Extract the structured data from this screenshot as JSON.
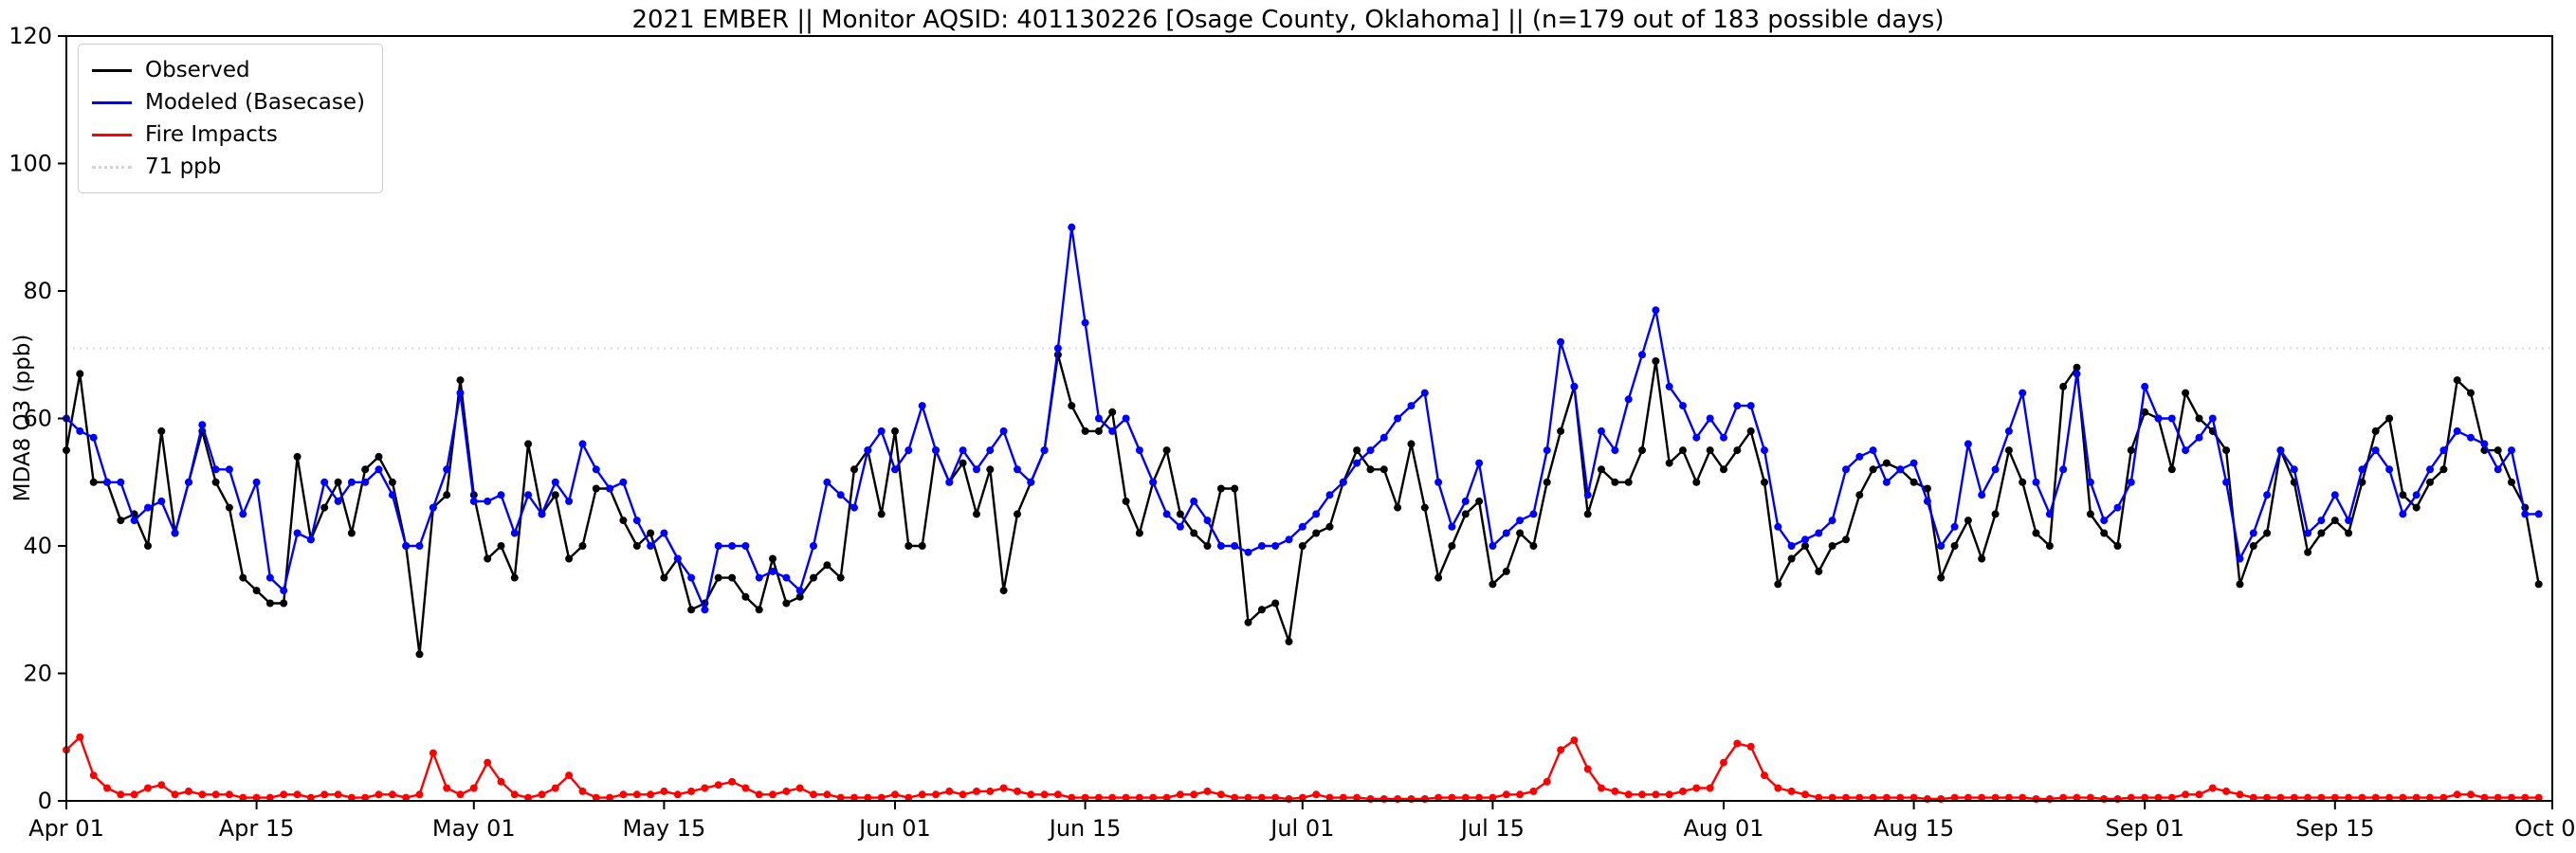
{
  "chart_data": {
    "type": "line",
    "title": "2021 EMBER || Monitor AQSID: 401130226 [Osage County, Oklahoma] || (n=179 out of 183 possible days)",
    "ylabel": "MDA8 O3 (ppb)",
    "xlabel": "",
    "ylim": [
      0,
      120
    ],
    "y_ticks": [
      0,
      20,
      40,
      60,
      80,
      100,
      120
    ],
    "x_domain": [
      0,
      183
    ],
    "x_ticks": [
      {
        "index": 0,
        "label": "Apr 01"
      },
      {
        "index": 14,
        "label": "Apr 15"
      },
      {
        "index": 30,
        "label": "May 01"
      },
      {
        "index": 44,
        "label": "May 15"
      },
      {
        "index": 61,
        "label": "Jun 01"
      },
      {
        "index": 75,
        "label": "Jun 15"
      },
      {
        "index": 91,
        "label": "Jul 01"
      },
      {
        "index": 105,
        "label": "Jul 15"
      },
      {
        "index": 122,
        "label": "Aug 01"
      },
      {
        "index": 136,
        "label": "Aug 15"
      },
      {
        "index": 153,
        "label": "Sep 01"
      },
      {
        "index": 167,
        "label": "Sep 15"
      },
      {
        "index": 183,
        "label": "Oct 01"
      }
    ],
    "grid": false,
    "legend_position": "upper-left",
    "reference_line": {
      "value": 71,
      "label": "71 ppb",
      "style": "dotted",
      "color": "#d9d9d9"
    },
    "series": [
      {
        "name": "Observed",
        "color": "#000000",
        "values": [
          55,
          67,
          50,
          50,
          44,
          45,
          40,
          58,
          42,
          50,
          58,
          50,
          46,
          35,
          33,
          31,
          31,
          54,
          41,
          46,
          50,
          42,
          52,
          54,
          50,
          40,
          23,
          46,
          48,
          66,
          48,
          38,
          40,
          35,
          56,
          45,
          48,
          38,
          40,
          49,
          49,
          44,
          40,
          42,
          35,
          38,
          30,
          31,
          35,
          35,
          32,
          30,
          38,
          31,
          32,
          35,
          37,
          35,
          52,
          55,
          45,
          58,
          40,
          40,
          55,
          50,
          53,
          45,
          52,
          33,
          45,
          50,
          55,
          70,
          62,
          58,
          58,
          61,
          47,
          42,
          50,
          55,
          45,
          42,
          40,
          49,
          49,
          28,
          30,
          31,
          25,
          40,
          42,
          43,
          50,
          55,
          52,
          52,
          46,
          56,
          46,
          35,
          40,
          45,
          47,
          34,
          36,
          42,
          40,
          50,
          58,
          65,
          45,
          52,
          50,
          50,
          55,
          69,
          53,
          55,
          50,
          55,
          52,
          55,
          58,
          50,
          34,
          38,
          40,
          36,
          40,
          41,
          48,
          52,
          53,
          52,
          50,
          49,
          35,
          40,
          44,
          38,
          45,
          55,
          50,
          42,
          40,
          65,
          68,
          45,
          42,
          40,
          55,
          61,
          60,
          52,
          64,
          60,
          58,
          55,
          34,
          40,
          42,
          55,
          50,
          39,
          42,
          44,
          42,
          50,
          58,
          60,
          48,
          46,
          50,
          52,
          66,
          64,
          55,
          55,
          50,
          46,
          34
        ]
      },
      {
        "name": "Modeled (Basecase)",
        "color": "#0000ff",
        "values": [
          60,
          58,
          57,
          50,
          50,
          44,
          46,
          47,
          42,
          50,
          59,
          52,
          52,
          45,
          50,
          35,
          33,
          42,
          41,
          50,
          47,
          50,
          50,
          52,
          48,
          40,
          40,
          46,
          52,
          64,
          47,
          47,
          48,
          42,
          48,
          45,
          50,
          47,
          56,
          52,
          49,
          50,
          44,
          40,
          42,
          38,
          35,
          30,
          40,
          40,
          40,
          35,
          36,
          35,
          33,
          40,
          50,
          48,
          46,
          55,
          58,
          52,
          55,
          62,
          55,
          50,
          55,
          52,
          55,
          58,
          52,
          50,
          55,
          71,
          90,
          75,
          60,
          58,
          60,
          55,
          50,
          45,
          43,
          47,
          44,
          40,
          40,
          39,
          40,
          40,
          41,
          43,
          45,
          48,
          50,
          53,
          55,
          57,
          60,
          62,
          64,
          50,
          43,
          47,
          53,
          40,
          42,
          44,
          45,
          55,
          72,
          65,
          48,
          58,
          55,
          63,
          70,
          77,
          65,
          62,
          57,
          60,
          57,
          62,
          62,
          55,
          43,
          40,
          41,
          42,
          44,
          52,
          54,
          55,
          50,
          52,
          53,
          47,
          40,
          43,
          56,
          48,
          52,
          58,
          64,
          50,
          45,
          52,
          67,
          50,
          44,
          46,
          50,
          65,
          60,
          60,
          55,
          57,
          60,
          50,
          38,
          42,
          48,
          55,
          52,
          42,
          44,
          48,
          44,
          52,
          55,
          52,
          45,
          48,
          52,
          55,
          58,
          57,
          56,
          52,
          55,
          45,
          45
        ]
      },
      {
        "name": "Fire Impacts",
        "color": "#ff0000",
        "values": [
          8,
          10,
          4,
          2,
          1,
          1,
          2,
          2.5,
          1,
          1.5,
          1,
          1,
          1,
          0.5,
          0.5,
          0.5,
          1,
          1,
          0.5,
          1,
          1,
          0.5,
          0.5,
          1,
          1,
          0.5,
          1,
          7.5,
          2,
          1,
          2,
          6,
          3,
          1,
          0.5,
          1,
          2,
          4,
          1.5,
          0.5,
          0.5,
          1,
          1,
          1,
          1.5,
          1,
          1.5,
          2,
          2.5,
          3,
          2,
          1,
          1,
          1.5,
          2,
          1,
          1,
          0.5,
          0.5,
          0.5,
          0.5,
          1,
          0.5,
          1,
          1,
          1.5,
          1,
          1.5,
          1.5,
          2,
          1.5,
          1,
          1,
          1,
          0.5,
          0.5,
          0.5,
          0.5,
          0.5,
          0.5,
          0.5,
          0.5,
          1,
          1,
          1.5,
          1,
          0.5,
          0.5,
          0.5,
          0.5,
          0.3,
          0.5,
          1,
          0.5,
          0.5,
          0.5,
          0.3,
          0.3,
          0.3,
          0.3,
          0.3,
          0.5,
          0.5,
          0.5,
          0.5,
          0.5,
          1,
          1,
          1.5,
          3,
          8,
          9.5,
          5,
          2,
          1.5,
          1,
          1,
          1,
          1,
          1.5,
          2,
          2,
          6,
          9,
          8.5,
          4,
          2,
          1.5,
          1,
          0.5,
          0.5,
          0.5,
          0.5,
          0.5,
          0.5,
          0.5,
          0.5,
          0.3,
          0.3,
          0.5,
          0.5,
          0.5,
          0.5,
          0.5,
          0.5,
          0.3,
          0.3,
          0.5,
          0.5,
          0.5,
          0.3,
          0.3,
          0.5,
          0.5,
          0.5,
          0.5,
          1,
          1,
          2,
          1.5,
          1,
          0.5,
          0.5,
          0.5,
          0.5,
          0.5,
          0.5,
          0.5,
          0.5,
          0.5,
          0.5,
          0.5,
          0.5,
          0.5,
          0.5,
          0.5,
          1,
          1,
          0.5,
          0.5,
          0.5,
          0.5,
          0.5
        ]
      }
    ]
  },
  "legend": {
    "items": [
      {
        "label": "Observed",
        "color": "#000000",
        "line_style": "solid"
      },
      {
        "label": "Modeled (Basecase)",
        "color": "#0000ff",
        "line_style": "solid"
      },
      {
        "label": "Fire Impacts",
        "color": "#ff0000",
        "line_style": "solid"
      },
      {
        "label": "71 ppb",
        "color": "#d3d3d3",
        "line_style": "dotted"
      }
    ]
  }
}
